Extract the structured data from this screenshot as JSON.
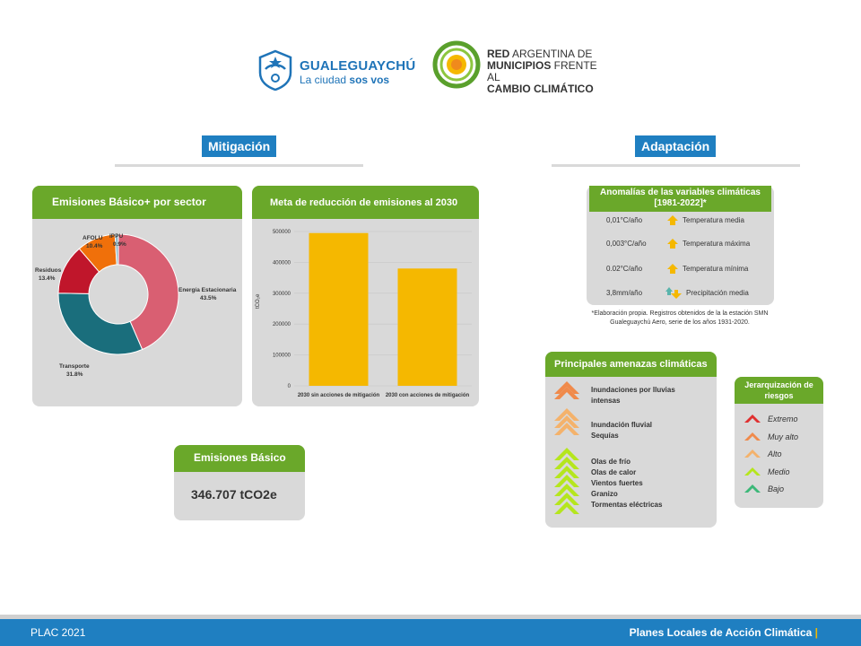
{
  "header": {
    "gualeguaychu_name": "GUALEGUAYCHÚ",
    "gualeguaychu_tagline_a": "La ciudad ",
    "gualeguaychu_tagline_b": "sos vos",
    "red_line1_bold": "RED",
    "red_line1_rest": " ARGENTINA DE",
    "red_line2_bold": "MUNICIPIOS",
    "red_line2_rest": " FRENTE AL",
    "red_line3": "CAMBIO CLIMÁTICO"
  },
  "mitigation": {
    "title": "Mitigación",
    "pie_card_title": "Emisiones Básico+ por sector",
    "bar_card_title": "Meta de reducción de emisiones al 2030",
    "basic_card_title": "Emisiones Básico",
    "basic_value": "346.707 tCO2e"
  },
  "adaptation": {
    "title": "Adaptación",
    "anomalies_title_l1": "Anomalías de las variables climáticas",
    "anomalies_title_l2": "[1981-2022]*",
    "anomalies": [
      {
        "value": "0,01°C/año",
        "label": "Temperatura media"
      },
      {
        "value": "0,003°C/año",
        "label": "Temperatura máxima"
      },
      {
        "value": "0.02°C/año",
        "label": "Temperatura mínima"
      },
      {
        "value": "3,8mm/año",
        "label": "Precipitación media"
      }
    ],
    "footnote_l1": "*Elaboración propia. Registros obtenidos de la  la estación SMN",
    "footnote_l2": "Gualeguaychú Aero, serie de los años 1931-2020.",
    "threats_title": "Principales amenazas climáticas",
    "threats": [
      {
        "text": "Inundaciones por lluvias",
        "level": "Muy alto"
      },
      {
        "text": "intensas",
        "level": ""
      },
      {
        "text": "Inundación fluvial",
        "level": "Alto"
      },
      {
        "text": "Sequías",
        "level": "Alto"
      },
      {
        "text": "Olas de frío",
        "level": "Medio"
      },
      {
        "text": "Olas de calor",
        "level": "Medio"
      },
      {
        "text": "Vientos fuertes",
        "level": "Medio"
      },
      {
        "text": "Granizo",
        "level": "Medio"
      },
      {
        "text": "Tormentas eléctricas",
        "level": "Medio"
      }
    ],
    "risk_title_l1": "Jerarquización de",
    "risk_title_l2": "riesgos",
    "risk_levels": [
      {
        "label": "Extremo",
        "color": "#e03030"
      },
      {
        "label": "Muy alto",
        "color": "#f08a4b"
      },
      {
        "label": "Alto",
        "color": "#f4b26b"
      },
      {
        "label": "Medio",
        "color": "#b5e61d"
      },
      {
        "label": "Bajo",
        "color": "#3cb878"
      }
    ]
  },
  "footer": {
    "left": "PLAC  2021",
    "right": "Planes Locales de Acción Climática",
    "right_mark": "|"
  },
  "chart_data": [
    {
      "type": "pie",
      "title": "Emisiones Básico+ por sector",
      "slices": [
        {
          "name": "Energía Estacionaria",
          "label": "43.5%",
          "value": 43.5,
          "color": "#d95f72"
        },
        {
          "name": "Transporte",
          "label": "31.8%",
          "value": 31.8,
          "color": "#1a6e7c"
        },
        {
          "name": "Residuos",
          "label": "13.4%",
          "value": 13.4,
          "color": "#c0162b"
        },
        {
          "name": "AFOLU",
          "label": "10.4%",
          "value": 10.4,
          "color": "#f0700a"
        },
        {
          "name": "IPPU",
          "label": "0.9%",
          "value": 0.9,
          "color": "#8fb8c8"
        }
      ]
    },
    {
      "type": "bar",
      "title": "Meta de reducción de emisiones al 2030",
      "categories": [
        "2030 sin acciones de mitigación",
        "2030 con acciones de mitigación"
      ],
      "values": [
        495000,
        380000
      ],
      "ylabel": "tCO₂e",
      "ylim": [
        0,
        500000
      ],
      "yticks": [
        "0",
        "100000",
        "200000",
        "300000",
        "400000",
        "500000"
      ],
      "bar_color": "#f5b800"
    }
  ]
}
